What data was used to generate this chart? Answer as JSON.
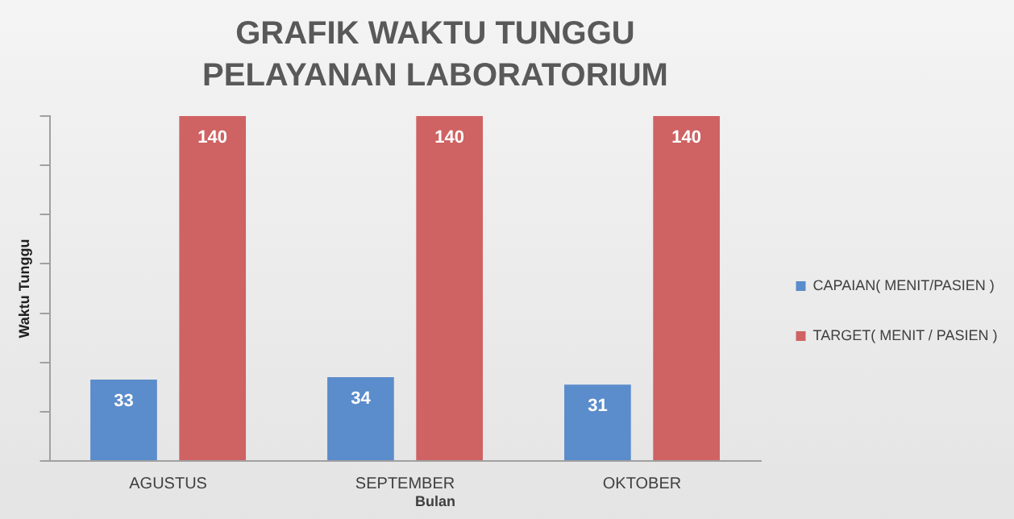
{
  "chart_data": {
    "type": "bar",
    "title": "GRAFIK WAKTU TUNGGU PELAYANAN LABORATORIUM",
    "xlabel": "Bulan",
    "ylabel": "Waktu Tunggu",
    "categories": [
      "AGUSTUS",
      "SEPTEMBER",
      "OKTOBER"
    ],
    "series": [
      {
        "name": "CAPAIAN( MENIT/PASIEN )",
        "color": "#5b8ccb",
        "values": [
          33,
          34,
          31
        ]
      },
      {
        "name": "TARGET( MENIT / PASIEN )",
        "color": "#cf6263",
        "values": [
          140,
          140,
          140
        ]
      }
    ],
    "data_labels": true,
    "legend": "right",
    "grid": false,
    "tick_labels": "x"
  }
}
